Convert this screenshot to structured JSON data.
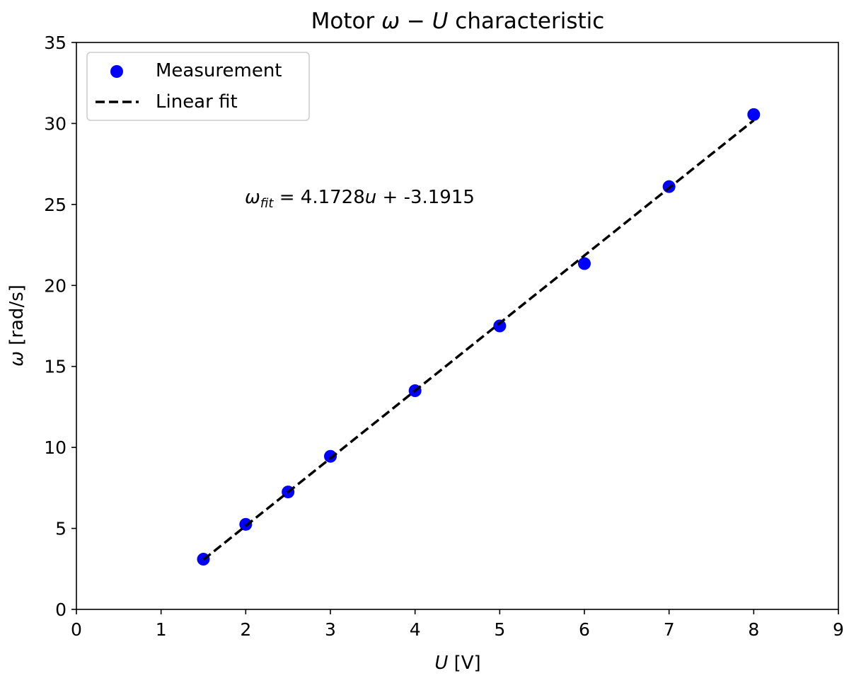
{
  "chart_data": {
    "type": "scatter",
    "title": {
      "pre": "Motor ",
      "omega": "ω",
      "dash": " − ",
      "U": "U",
      "post": " characteristic"
    },
    "xlabel": {
      "U": "U",
      "unit": " [V]"
    },
    "ylabel": {
      "omega": "ω",
      "unit": " [rad/s]"
    },
    "xlim": [
      0,
      9
    ],
    "ylim": [
      0,
      35
    ],
    "xticks": [
      0,
      1,
      2,
      3,
      4,
      5,
      6,
      7,
      8,
      9
    ],
    "yticks": [
      0,
      5,
      10,
      15,
      20,
      25,
      30,
      35
    ],
    "grid": false,
    "legend_position": "top-left",
    "series": [
      {
        "name": "Measurement",
        "kind": "scatter",
        "color": "#0000ff",
        "x": [
          1.5,
          2,
          2.5,
          3,
          4,
          5,
          6,
          7,
          8
        ],
        "y": [
          3.1,
          5.25,
          7.25,
          9.45,
          13.5,
          17.5,
          21.35,
          26.1,
          30.55
        ]
      },
      {
        "name": "Linear fit",
        "kind": "line",
        "style": "dashed",
        "color": "#000000",
        "slope": 4.1728,
        "intercept": -3.1915,
        "x_range": [
          1.5,
          8
        ]
      }
    ],
    "annotation": {
      "omega": "ω",
      "sub": "fit",
      "eq": " = 4.1728",
      "u": "u",
      "rest": " + -3.1915"
    }
  }
}
